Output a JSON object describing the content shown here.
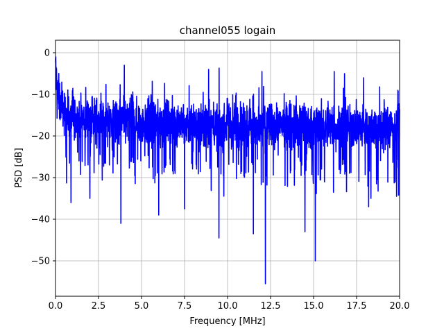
{
  "chart_data": {
    "type": "line",
    "title": "channel055 logain",
    "xlabel": "Frequency [MHz]",
    "ylabel": "PSD [dB]",
    "xlim": [
      0,
      20
    ],
    "ylim": [
      -58.5,
      3
    ],
    "grid": true,
    "x_ticks": [
      0,
      2.5,
      5,
      7.5,
      10,
      12.5,
      15,
      17.5,
      20
    ],
    "x_tick_labels": [
      "0.0",
      "2.5",
      "5.0",
      "7.5",
      "10.0",
      "12.5",
      "15.0",
      "17.5",
      "20.0"
    ],
    "y_ticks": [
      0,
      -10,
      -20,
      -30,
      -40,
      -50
    ],
    "y_tick_labels": [
      "0",
      "−10",
      "−20",
      "−30",
      "−40",
      "−50"
    ],
    "series": [
      {
        "color": "#0000ff",
        "baseline": {
          "x": [
            0,
            0.1,
            0.3,
            0.6,
            1.0,
            1.5,
            2.0,
            3.0,
            4.0,
            5.0,
            6.0,
            7.0,
            8.0,
            9.0,
            10.0,
            11.0,
            12.0,
            13.0,
            14.0,
            15.0,
            16.0,
            17.0,
            18.0,
            19.0,
            20.0
          ],
          "y": [
            -4,
            -9,
            -13,
            -15,
            -15.5,
            -16,
            -16,
            -16.5,
            -16.5,
            -17,
            -17,
            -17,
            -17,
            -17.5,
            -17.5,
            -17.5,
            -17.5,
            -17.5,
            -17.5,
            -18,
            -18,
            -18,
            -18,
            -18,
            -18
          ]
        },
        "peaks": [
          {
            "x": 0.02,
            "y": -1
          },
          {
            "x": 4.0,
            "y": -3
          },
          {
            "x": 8.9,
            "y": -4
          },
          {
            "x": 12.0,
            "y": -4.5
          },
          {
            "x": 16.2,
            "y": -4.5
          },
          {
            "x": 16.8,
            "y": -5
          },
          {
            "x": 17.9,
            "y": -6
          },
          {
            "x": 19.9,
            "y": -9
          }
        ],
        "dips": [
          {
            "x": 0.9,
            "y": -36
          },
          {
            "x": 2.0,
            "y": -35
          },
          {
            "x": 3.8,
            "y": -41
          },
          {
            "x": 6.0,
            "y": -39
          },
          {
            "x": 7.5,
            "y": -37.5
          },
          {
            "x": 9.5,
            "y": -44.5
          },
          {
            "x": 11.5,
            "y": -43.5
          },
          {
            "x": 12.2,
            "y": -55.5
          },
          {
            "x": 14.5,
            "y": -43
          },
          {
            "x": 15.1,
            "y": -50
          },
          {
            "x": 18.2,
            "y": -37
          }
        ]
      }
    ]
  }
}
